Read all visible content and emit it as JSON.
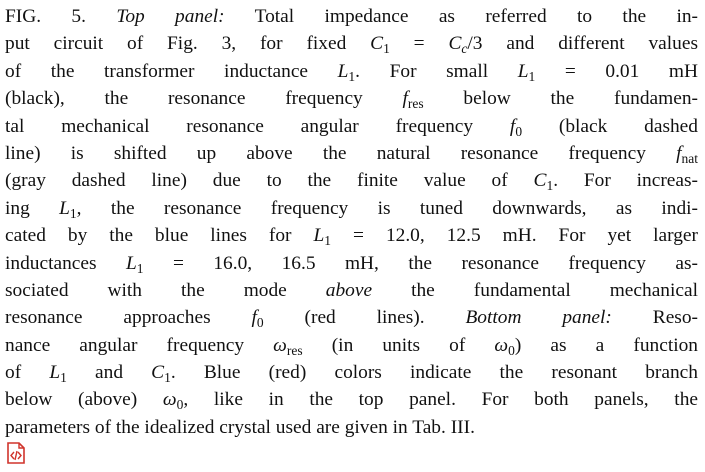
{
  "caption": {
    "lines": [
      [
        "FIG. 5. ",
        {
          "i": "Top panel:"
        },
        " Total impedance as referred to the in-"
      ],
      [
        "put circuit of Fig. 3, for fixed ",
        {
          "i": "C"
        },
        {
          "sub": "1"
        },
        " = ",
        {
          "i": "C"
        },
        {
          "isub": "c"
        },
        "/3 and different values"
      ],
      [
        "of the transformer inductance ",
        {
          "i": "L"
        },
        {
          "sub": "1"
        },
        ". For small ",
        {
          "i": "L"
        },
        {
          "sub": "1"
        },
        " = 0.01 mH"
      ],
      [
        "(black), the resonance frequency ",
        {
          "i": "f"
        },
        {
          "sub": "res"
        },
        " below the fundamen-"
      ],
      [
        "tal mechanical resonance angular frequency ",
        {
          "i": "f"
        },
        {
          "sub": "0"
        },
        " (black dashed"
      ],
      [
        "line) is shifted up above the natural resonance frequency ",
        {
          "i": "f"
        },
        {
          "sub": "nat"
        }
      ],
      [
        "(gray dashed line) due to the finite value of ",
        {
          "i": "C"
        },
        {
          "sub": "1"
        },
        ". For increas-"
      ],
      [
        "ing ",
        {
          "i": "L"
        },
        {
          "sub": "1"
        },
        ", the resonance frequency is tuned downwards, as indi-"
      ],
      [
        "cated by the blue lines for ",
        {
          "i": "L"
        },
        {
          "sub": "1"
        },
        " = 12.0, 12.5 mH. For yet larger"
      ],
      [
        "inductances ",
        {
          "i": "L"
        },
        {
          "sub": "1"
        },
        " = 16.0, 16.5 mH, the resonance frequency as-"
      ],
      [
        "sociated with the mode ",
        {
          "i": "above"
        },
        " the fundamental mechanical"
      ],
      [
        "resonance approaches ",
        {
          "i": "f"
        },
        {
          "sub": "0"
        },
        " (red lines). ",
        {
          "i": "Bottom panel:"
        },
        " Reso-"
      ],
      [
        "nance angular frequency ",
        {
          "i": "ω"
        },
        {
          "sub": "res"
        },
        " (in units of ",
        {
          "i": "ω"
        },
        {
          "sub": "0"
        },
        ") as a function"
      ],
      [
        "of ",
        {
          "i": "L"
        },
        {
          "sub": "1"
        },
        " and ",
        {
          "i": "C"
        },
        {
          "sub": "1"
        },
        ". Blue (red) colors indicate the resonant branch"
      ],
      [
        "below (above) ",
        {
          "i": "ω"
        },
        {
          "sub": "0"
        },
        ", like in the top panel. For both panels, the"
      ],
      [
        "parameters of the idealized crystal used are given in Tab. III."
      ]
    ]
  }
}
